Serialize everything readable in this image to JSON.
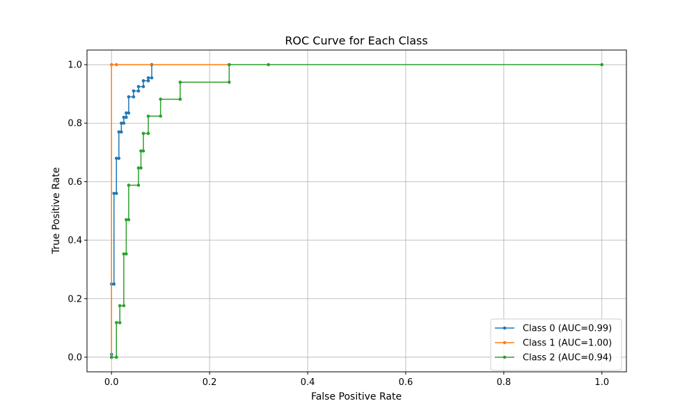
{
  "chart_data": {
    "type": "line",
    "title": "ROC Curve for Each Class",
    "xlabel": "False Positive Rate",
    "ylabel": "True Positive Rate",
    "xlim": [
      -0.05,
      1.05
    ],
    "ylim": [
      -0.05,
      1.05
    ],
    "xticks": [
      "0.0",
      "0.2",
      "0.4",
      "0.6",
      "0.8",
      "1.0"
    ],
    "yticks": [
      "0.0",
      "0.2",
      "0.4",
      "0.6",
      "0.8",
      "1.0"
    ],
    "grid": true,
    "legend_position": "lower-right",
    "series": [
      {
        "name": "Class 0 (AUC=0.99)",
        "color": "#1f77b4",
        "x": [
          0.0,
          0.0,
          0.0,
          0.005,
          0.005,
          0.01,
          0.01,
          0.015,
          0.015,
          0.02,
          0.02,
          0.025,
          0.025,
          0.03,
          0.03,
          0.035,
          0.035,
          0.045,
          0.045,
          0.055,
          0.055,
          0.065,
          0.065,
          0.075,
          0.075,
          0.082,
          0.082
        ],
        "y": [
          0.0,
          0.01,
          0.25,
          0.25,
          0.56,
          0.56,
          0.68,
          0.68,
          0.77,
          0.77,
          0.8,
          0.8,
          0.82,
          0.82,
          0.835,
          0.835,
          0.89,
          0.89,
          0.91,
          0.91,
          0.925,
          0.925,
          0.945,
          0.945,
          0.955,
          0.955,
          1.0
        ]
      },
      {
        "name": "Class 1 (AUC=1.00)",
        "color": "#ff7f0e",
        "x": [
          0.0,
          0.0,
          0.01,
          0.24
        ],
        "y": [
          0.0,
          1.0,
          1.0,
          1.0
        ]
      },
      {
        "name": "Class 2 (AUC=0.94)",
        "color": "#2ca02c",
        "x": [
          0.0,
          0.01,
          0.01,
          0.017,
          0.017,
          0.025,
          0.025,
          0.03,
          0.03,
          0.035,
          0.035,
          0.055,
          0.055,
          0.06,
          0.06,
          0.065,
          0.065,
          0.075,
          0.075,
          0.1,
          0.1,
          0.14,
          0.14,
          0.24,
          0.24,
          0.32,
          1.0
        ],
        "y": [
          0.0,
          0.0,
          0.118,
          0.118,
          0.176,
          0.176,
          0.353,
          0.353,
          0.47,
          0.47,
          0.588,
          0.588,
          0.647,
          0.647,
          0.705,
          0.705,
          0.765,
          0.765,
          0.824,
          0.824,
          0.882,
          0.882,
          0.94,
          0.94,
          1.0,
          1.0,
          1.0
        ]
      }
    ]
  }
}
